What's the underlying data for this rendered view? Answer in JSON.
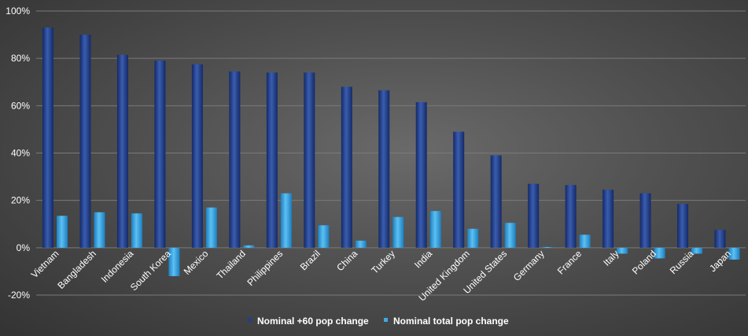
{
  "chart_data": {
    "type": "bar",
    "categories": [
      "Vietnam",
      "Bangladesh",
      "Indonesia",
      "South Korea",
      "Mexico",
      "Thailand",
      "Philippines",
      "Brazil",
      "China",
      "Turkey",
      "India",
      "United Kingdom",
      "United States",
      "Germany",
      "France",
      "Italy",
      "Poland",
      "Russia",
      "Japan"
    ],
    "series": [
      {
        "name": "Nominal +60 pop change",
        "values": [
          93,
          90,
          81.5,
          79,
          77.5,
          74.5,
          74,
          74,
          68,
          66.5,
          61.5,
          49,
          39,
          27,
          26.5,
          24.5,
          23,
          18.5,
          7.5
        ],
        "color": "#1f3f8f"
      },
      {
        "name": "Nominal total pop change",
        "values": [
          13.5,
          15,
          14.5,
          -12,
          17,
          1,
          23,
          9.5,
          3,
          13,
          15.5,
          8,
          10.5,
          0.3,
          5.5,
          -2.5,
          -4.5,
          -2.5,
          -5
        ],
        "color": "#3fa9e6"
      }
    ],
    "y_ticks": [
      "-20%",
      "0%",
      "20%",
      "40%",
      "60%",
      "80%",
      "100%"
    ],
    "ylim": [
      -20,
      100
    ],
    "grid": true,
    "legend_position": "bottom"
  }
}
